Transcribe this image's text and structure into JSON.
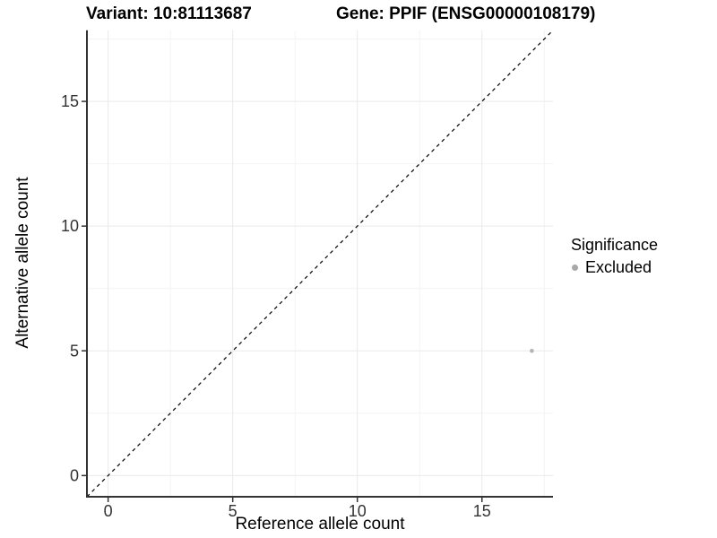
{
  "titles": {
    "variant": "Variant: 10:81113687",
    "gene": "Gene: PPIF (ENSG00000108179)"
  },
  "chart_data": {
    "type": "scatter",
    "title_left": "Variant: 10:81113687",
    "title_right": "Gene: PPIF (ENSG00000108179)",
    "xlabel": "Reference allele count",
    "ylabel": "Alternative allele count",
    "xlim": [
      -0.85,
      17.85
    ],
    "ylim": [
      -0.85,
      17.85
    ],
    "x_ticks": [
      0,
      5,
      10,
      15
    ],
    "y_ticks": [
      0,
      5,
      10,
      15
    ],
    "x_minor_ticks": [
      2.5,
      7.5,
      12.5,
      17.5
    ],
    "y_minor_ticks": [
      2.5,
      7.5,
      12.5,
      17.5
    ],
    "grid": true,
    "points": [
      {
        "x": 17,
        "y": 5,
        "significance": "Excluded"
      }
    ],
    "identity_line": {
      "style": "dashed",
      "from": [
        -0.85,
        -0.85
      ],
      "to": [
        17.85,
        17.85
      ]
    },
    "legend": {
      "title": "Significance",
      "position": "right",
      "items": [
        {
          "label": "Excluded",
          "color": "#a8a8a8"
        }
      ]
    },
    "colors": {
      "point": "#b4b4b4",
      "identity_line": "#000000",
      "axis_line": "#333333",
      "tick_label": "#333333",
      "grid_major": "#e9e9e9",
      "grid_minor": "#f4f4f4",
      "background": "#ffffff"
    }
  }
}
